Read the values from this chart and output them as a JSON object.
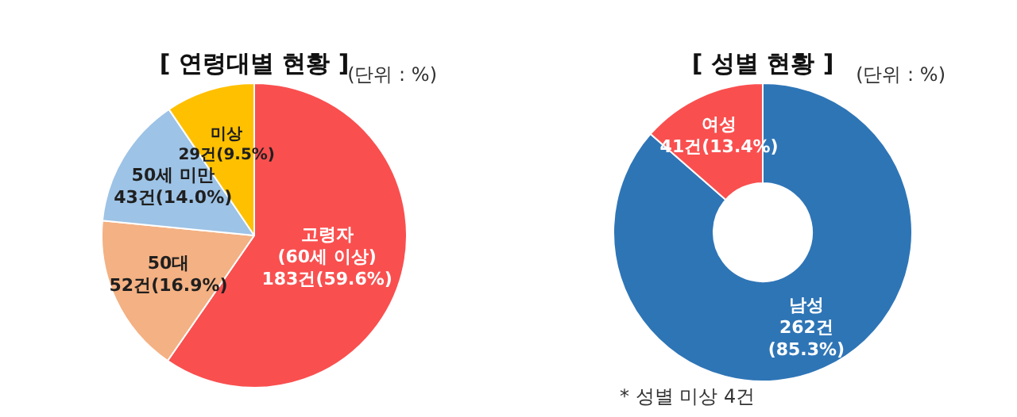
{
  "chart_data": [
    {
      "type": "pie",
      "title": "[ 연령대별 현황 ]",
      "categories": [
        "고령자\n(60세 이상)",
        "50대",
        "50세 미만",
        "미상"
      ],
      "values": [
        183,
        52,
        43,
        29
      ],
      "value_labels": [
        "183건(59.6%)",
        "52건(16.9%)",
        "43건(14.0%)",
        "29건(9.5%)"
      ],
      "colors": [
        "#fa4f4f",
        "#f4b183",
        "#9dc3e6",
        "#ffc000"
      ],
      "legend": false,
      "annotations": [
        "(단위 : %)"
      ]
    },
    {
      "type": "donut",
      "title": "[ 성별 현황 ]",
      "categories": [
        "남성",
        "여성"
      ],
      "values": [
        262,
        41
      ],
      "value_labels": [
        "262건\n(85.3%)",
        "41건(13.4%)"
      ],
      "colors": [
        "#2e75b6",
        "#fa4f4f"
      ],
      "legend": false,
      "annotations": [
        "(단위 : %)",
        "* 성별 미상 4건"
      ]
    }
  ]
}
